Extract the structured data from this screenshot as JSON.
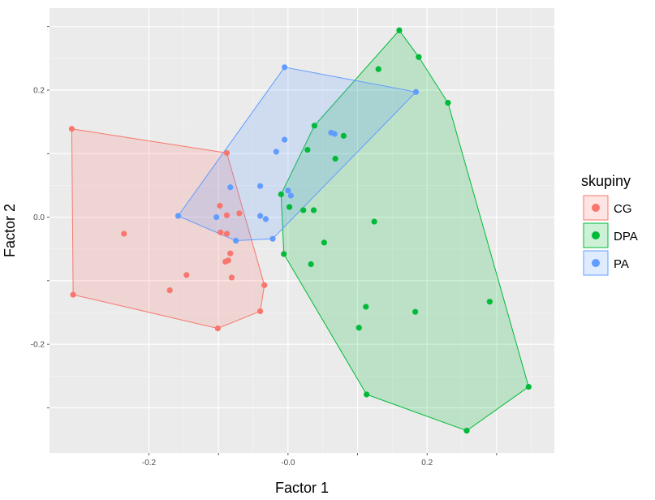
{
  "chart_data": {
    "type": "scatter",
    "xlabel": "Factor 1",
    "ylabel": "Factor 2",
    "xlim": [
      -0.343,
      0.383
    ],
    "ylim": [
      -0.371,
      0.329
    ],
    "x_ticks": [
      -0.2,
      -0.1,
      0.0,
      0.1,
      0.2,
      0.3
    ],
    "x_tick_labels": [
      "-0.2",
      "",
      "-0.0",
      "",
      "0.2",
      ""
    ],
    "y_ticks": [
      -0.3,
      -0.2,
      -0.1,
      0.0,
      0.1,
      0.2,
      0.3
    ],
    "y_tick_labels": [
      "",
      "-0.2",
      "",
      "0.0",
      "",
      "0.2",
      ""
    ],
    "grid": true,
    "legend": {
      "title": "skupiny",
      "position": "right"
    },
    "series": [
      {
        "name": "CG",
        "color": "#F8766D",
        "points": [
          [
            -0.311,
            0.139
          ],
          [
            -0.309,
            -0.122
          ],
          [
            -0.236,
            -0.026
          ],
          [
            -0.17,
            -0.115
          ],
          [
            -0.146,
            -0.091
          ],
          [
            -0.101,
            -0.175
          ],
          [
            -0.098,
            0.018
          ],
          [
            -0.097,
            -0.024
          ],
          [
            -0.09,
            -0.07
          ],
          [
            -0.088,
            0.101
          ],
          [
            -0.088,
            0.003
          ],
          [
            -0.088,
            -0.026
          ],
          [
            -0.086,
            -0.068
          ],
          [
            -0.083,
            -0.057
          ],
          [
            -0.081,
            -0.095
          ],
          [
            -0.07,
            0.006
          ],
          [
            -0.04,
            -0.148
          ],
          [
            -0.034,
            -0.107
          ]
        ],
        "hull": [
          [
            -0.311,
            0.139
          ],
          [
            -0.088,
            0.101
          ],
          [
            -0.034,
            -0.107
          ],
          [
            -0.04,
            -0.148
          ],
          [
            -0.101,
            -0.175
          ],
          [
            -0.309,
            -0.122
          ]
        ]
      },
      {
        "name": "DPA",
        "color": "#00BA38",
        "points": [
          [
            0.16,
            0.294
          ],
          [
            0.188,
            0.252
          ],
          [
            0.13,
            0.233
          ],
          [
            0.23,
            0.18
          ],
          [
            0.038,
            0.144
          ],
          [
            0.08,
            0.128
          ],
          [
            0.028,
            0.106
          ],
          [
            0.068,
            0.092
          ],
          [
            -0.01,
            0.036
          ],
          [
            0.002,
            0.016
          ],
          [
            0.022,
            0.011
          ],
          [
            0.037,
            0.011
          ],
          [
            0.124,
            -0.007
          ],
          [
            0.052,
            -0.04
          ],
          [
            -0.006,
            -0.058
          ],
          [
            0.033,
            -0.074
          ],
          [
            0.29,
            -0.133
          ],
          [
            0.112,
            -0.141
          ],
          [
            0.183,
            -0.149
          ],
          [
            0.102,
            -0.174
          ],
          [
            0.346,
            -0.267
          ],
          [
            0.113,
            -0.279
          ],
          [
            0.257,
            -0.336
          ]
        ],
        "hull": [
          [
            0.16,
            0.294
          ],
          [
            0.188,
            0.252
          ],
          [
            0.23,
            0.18
          ],
          [
            0.346,
            -0.267
          ],
          [
            0.257,
            -0.336
          ],
          [
            0.113,
            -0.279
          ],
          [
            -0.006,
            -0.058
          ],
          [
            -0.01,
            0.036
          ],
          [
            0.038,
            0.144
          ]
        ]
      },
      {
        "name": "PA",
        "color": "#619CFF",
        "points": [
          [
            -0.005,
            0.236
          ],
          [
            0.184,
            0.197
          ],
          [
            0.062,
            0.133
          ],
          [
            0.067,
            0.131
          ],
          [
            -0.005,
            0.122
          ],
          [
            -0.017,
            0.103
          ],
          [
            -0.083,
            0.047
          ],
          [
            -0.04,
            0.049
          ],
          [
            0.0,
            0.042
          ],
          [
            0.004,
            0.034
          ],
          [
            -0.158,
            0.002
          ],
          [
            -0.103,
            0.0
          ],
          [
            -0.04,
            0.002
          ],
          [
            -0.032,
            -0.003
          ],
          [
            -0.075,
            -0.037
          ],
          [
            -0.022,
            -0.034
          ]
        ],
        "hull": [
          [
            -0.005,
            0.236
          ],
          [
            0.184,
            0.197
          ],
          [
            -0.022,
            -0.034
          ],
          [
            -0.075,
            -0.037
          ],
          [
            -0.158,
            0.002
          ]
        ]
      }
    ]
  }
}
